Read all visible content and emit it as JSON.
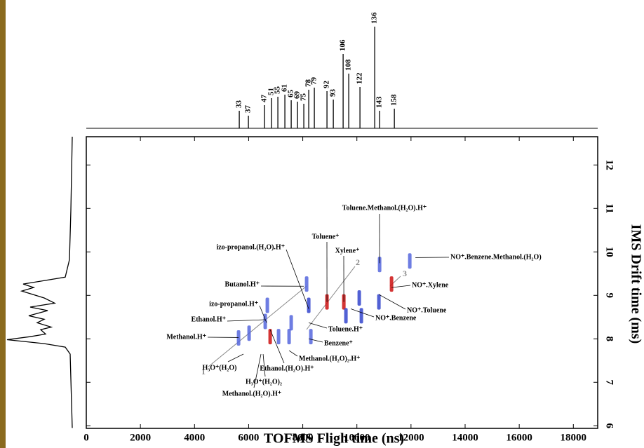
{
  "chart_data": {
    "type": "scatter",
    "x_label": "TOFMS  Fligh time (ns)",
    "y_label": "IMS Drift time (ms)",
    "xlim": [
      0,
      18900
    ],
    "xticks": [
      0,
      2000,
      4000,
      6000,
      8000,
      10000,
      12000,
      14000,
      16000,
      18000
    ],
    "ylim": [
      5.94,
      12.65
    ],
    "yticks": [
      6,
      7,
      8,
      9,
      10,
      11,
      12
    ],
    "spots": [
      {
        "x": 5628,
        "y": 8.02,
        "color": "#5566dd"
      },
      {
        "x": 6017,
        "y": 8.13,
        "color": "#5566dd"
      },
      {
        "x": 6613,
        "y": 8.4,
        "color": "#5566dd"
      },
      {
        "x": 6691,
        "y": 8.77,
        "color": "#5566dd"
      },
      {
        "x": 6795,
        "y": 8.05,
        "color": "#cc1111"
      },
      {
        "x": 7106,
        "y": 8.05,
        "color": "#5566dd"
      },
      {
        "x": 7495,
        "y": 8.05,
        "color": "#5566dd"
      },
      {
        "x": 7573,
        "y": 8.37,
        "color": "#5566dd"
      },
      {
        "x": 8143,
        "y": 9.26,
        "color": "#5566dd"
      },
      {
        "x": 8221,
        "y": 8.77,
        "color": "#3344cc"
      },
      {
        "x": 8299,
        "y": 8.05,
        "color": "#5566dd"
      },
      {
        "x": 8895,
        "y": 8.85,
        "color": "#cc1111"
      },
      {
        "x": 9518,
        "y": 8.85,
        "color": "#cc1111"
      },
      {
        "x": 9595,
        "y": 8.53,
        "color": "#3344cc"
      },
      {
        "x": 10088,
        "y": 8.94,
        "color": "#3344cc"
      },
      {
        "x": 10166,
        "y": 8.53,
        "color": "#3344cc"
      },
      {
        "x": 10814,
        "y": 8.85,
        "color": "#3344cc"
      },
      {
        "x": 11281,
        "y": 9.26,
        "color": "#cc1111"
      },
      {
        "x": 11955,
        "y": 9.79,
        "color": "#5566dd"
      },
      {
        "x": 10840,
        "y": 9.71,
        "color": "#5566dd"
      }
    ],
    "annotations": [
      {
        "text": "Toluene.Methanol.(H₂O).H⁺",
        "x": 10840,
        "y": 9.74
      },
      {
        "text": "NO⁺.Benzene.Methanol.(H₂O)",
        "x": 12163,
        "y": 9.87
      },
      {
        "text": "Toluene⁺",
        "x": 8895,
        "y": 8.85
      },
      {
        "text": "Xylene⁺",
        "x": 9518,
        "y": 8.85
      },
      {
        "text": "izo-propanol.(H₂O).H⁺",
        "x": 8221,
        "y": 8.69
      },
      {
        "text": "Butanol.H⁺",
        "x": 8039,
        "y": 9.21
      },
      {
        "text": "izo-propanol.H⁺",
        "x": 6665,
        "y": 8.37
      },
      {
        "text": "Ethanol.H⁺",
        "x": 6613,
        "y": 8.44
      },
      {
        "text": "Methanol.H⁺",
        "x": 5628,
        "y": 8.03
      },
      {
        "text": "NO⁺.Xylene",
        "x": 11281,
        "y": 9.18
      },
      {
        "text": "NO⁺.Toluene",
        "x": 10814,
        "y": 9.02
      },
      {
        "text": "NO⁺.Benzene",
        "x": 9777,
        "y": 8.69
      },
      {
        "text": "Toluene.H⁺",
        "x": 8221,
        "y": 8.37
      },
      {
        "text": "Benzene⁺",
        "x": 8221,
        "y": 8.0
      },
      {
        "text": "Methanol.(H₂O)₂.H⁺",
        "x": 7495,
        "y": 7.73
      },
      {
        "text": "Ethanol.(H₂O).H⁺",
        "x": 6795,
        "y": 8.21
      },
      {
        "text": "H₃O⁺(H₂O)",
        "x": 5809,
        "y": 7.65
      },
      {
        "text": "H₃O⁺(H₂O)₂",
        "x": 6535,
        "y": 7.65
      },
      {
        "text": "Methanol.(H₂O).H⁺",
        "x": 6457,
        "y": 7.65
      }
    ],
    "trend_labels": [
      "1",
      "2",
      "3"
    ],
    "tof_spectrum": {
      "x": [
        5654,
        5991,
        6587,
        6846,
        7080,
        7339,
        7573,
        7806,
        8039,
        8221,
        8428,
        8895,
        9129,
        9492,
        9699,
        10114,
        10659,
        10840,
        11385
      ],
      "values": [
        25,
        18,
        33,
        43,
        45,
        48,
        40,
        38,
        35,
        55,
        58,
        53,
        41,
        106,
        78,
        59,
        145,
        25,
        28
      ],
      "labels": [
        "33",
        "37",
        "47",
        "51",
        "55",
        "61",
        "65",
        "69",
        "75",
        "78",
        "79",
        "92",
        "93",
        "106",
        "108",
        "122",
        "136",
        "143",
        "158"
      ]
    },
    "drift_spectrum": {
      "y": [
        12.65,
        10.95,
        9.82,
        9.42,
        9.34,
        9.26,
        9.18,
        9.1,
        8.94,
        8.82,
        8.73,
        8.65,
        8.53,
        8.45,
        8.37,
        8.27,
        8.21,
        8.11,
        8.05,
        7.98,
        7.89,
        7.81,
        7.65,
        5.95
      ],
      "values": [
        0,
        2,
        4,
        10,
        40,
        70,
        55,
        72,
        40,
        25,
        60,
        35,
        62,
        40,
        50,
        30,
        45,
        38,
        60,
        93,
        40,
        10,
        3,
        0
      ]
    }
  }
}
